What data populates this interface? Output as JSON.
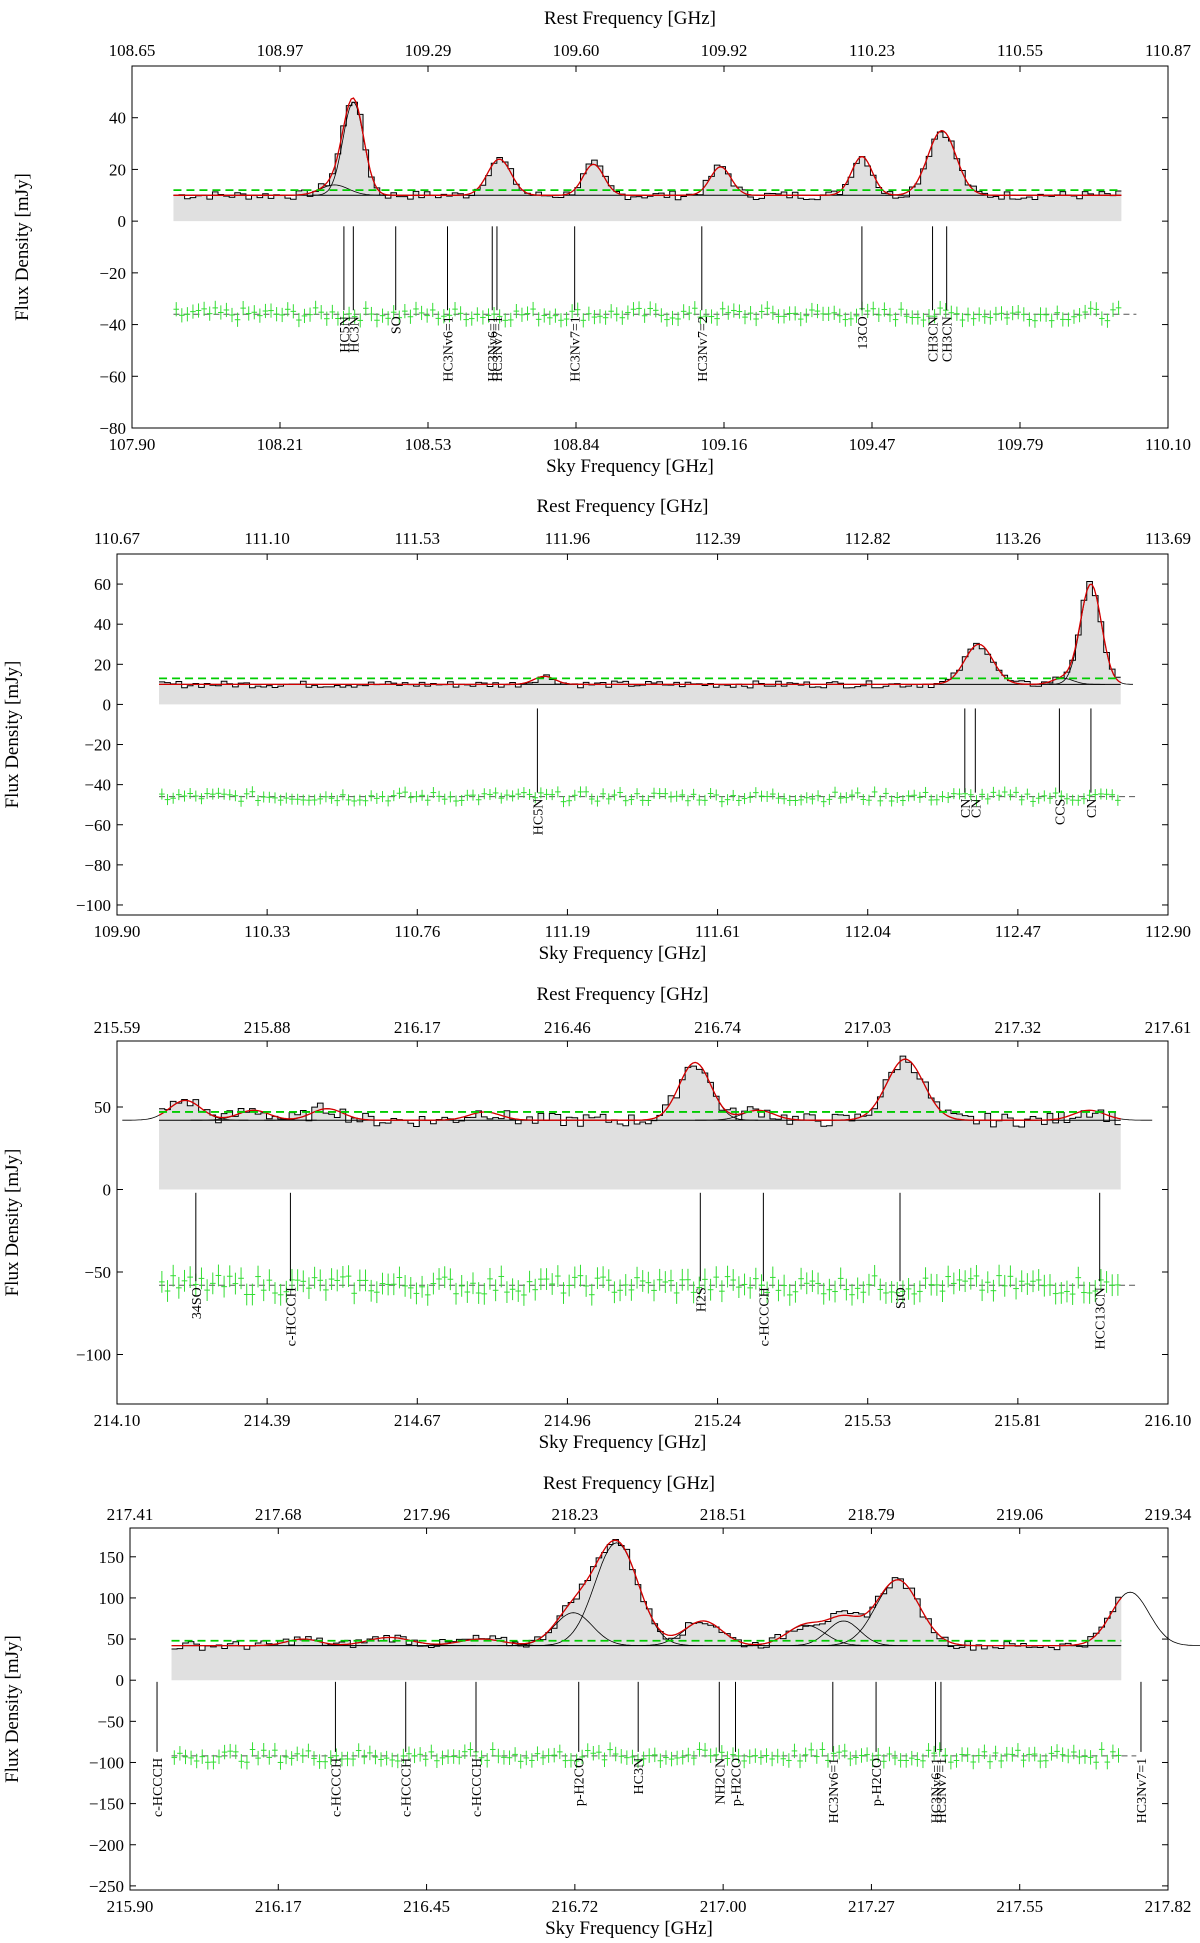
{
  "colors": {
    "spectrum_fill": "#e0e0e0",
    "spectrum_line": "#000000",
    "fit_total": "#d40000",
    "fit_component": "#000000",
    "noise_level": "#00cc00",
    "residual": "#33dd33",
    "axis": "#000000"
  },
  "chart_data": [
    {
      "type": "line",
      "title": "",
      "top_xlabel": "Rest Frequency [GHz]",
      "xlabel": "Sky Frequency [GHz]",
      "ylabel": "Flux Density [mJy]",
      "top_ticks": [
        "108.65",
        "108.97",
        "109.29",
        "109.60",
        "109.92",
        "110.23",
        "110.55",
        "110.87"
      ],
      "bottom_ticks": [
        "107.90",
        "108.21",
        "108.53",
        "108.84",
        "109.16",
        "109.47",
        "109.79",
        "110.10"
      ],
      "xlim": [
        107.9,
        110.1
      ],
      "ylim": [
        -80,
        60
      ],
      "yticks": [
        -80,
        -60,
        -40,
        -20,
        0,
        20,
        40
      ],
      "continuum": 10,
      "noise_level": 12,
      "residual_offset": -36,
      "residual_noise": 2.5,
      "peaks": [
        {
          "x": 108.37,
          "amp": 36,
          "sigma": 0.022
        },
        {
          "x": 108.33,
          "amp": 4,
          "sigma": 0.03
        },
        {
          "x": 108.68,
          "amp": 14,
          "sigma": 0.025
        },
        {
          "x": 108.88,
          "amp": 12,
          "sigma": 0.022
        },
        {
          "x": 109.15,
          "amp": 11,
          "sigma": 0.022
        },
        {
          "x": 109.45,
          "amp": 15,
          "sigma": 0.022
        },
        {
          "x": 109.62,
          "amp": 25,
          "sigma": 0.03
        }
      ],
      "lines": [
        {
          "label": "HC5N",
          "x": 108.35
        },
        {
          "label": "HC3N",
          "x": 108.37
        },
        {
          "label": "SO",
          "x": 108.46
        },
        {
          "label": "HC3Nv6=1",
          "x": 108.57
        },
        {
          "label": "HC3Nv6=1",
          "x": 108.665
        },
        {
          "label": "HC3Nv7=1",
          "x": 108.675
        },
        {
          "label": "HC3Nv7=1",
          "x": 108.84
        },
        {
          "label": "HC3Nv7=2",
          "x": 109.11
        },
        {
          "label": "13CO",
          "x": 109.45
        },
        {
          "label": "CH3CN",
          "x": 109.6
        },
        {
          "label": "CH3CN",
          "x": 109.63
        }
      ]
    },
    {
      "type": "line",
      "title": "",
      "top_xlabel": "Rest Frequency [GHz]",
      "xlabel": "Sky Frequency [GHz]",
      "ylabel": "Flux Density [mJy]",
      "top_ticks": [
        "110.67",
        "111.10",
        "111.53",
        "111.96",
        "112.39",
        "112.82",
        "113.26",
        "113.69"
      ],
      "bottom_ticks": [
        "109.90",
        "110.33",
        "110.76",
        "111.19",
        "111.61",
        "112.04",
        "112.47",
        "112.90"
      ],
      "xlim": [
        109.9,
        112.9
      ],
      "ylim": [
        -105,
        75
      ],
      "yticks": [
        -100,
        -80,
        -60,
        -40,
        -20,
        0,
        20,
        40,
        60
      ],
      "continuum": 10,
      "noise_level": 13,
      "residual_offset": -46,
      "residual_noise": 2.5,
      "peaks": [
        {
          "x": 111.12,
          "amp": 4,
          "sigma": 0.03
        },
        {
          "x": 112.36,
          "amp": 20,
          "sigma": 0.04
        },
        {
          "x": 112.68,
          "amp": 50,
          "sigma": 0.03
        },
        {
          "x": 112.6,
          "amp": 3,
          "sigma": 0.03
        }
      ],
      "lines": [
        {
          "label": "HC5N",
          "x": 111.1
        },
        {
          "label": "CN",
          "x": 112.32
        },
        {
          "label": "CN",
          "x": 112.35
        },
        {
          "label": "CCS",
          "x": 112.59
        },
        {
          "label": "CN",
          "x": 112.68
        }
      ]
    },
    {
      "type": "line",
      "title": "",
      "top_xlabel": "Rest Frequency [GHz]",
      "xlabel": "Sky Frequency [GHz]",
      "ylabel": "Flux Density [mJy]",
      "top_ticks": [
        "215.59",
        "215.88",
        "216.17",
        "216.46",
        "216.74",
        "217.03",
        "217.32",
        "217.61"
      ],
      "bottom_ticks": [
        "214.10",
        "214.39",
        "214.67",
        "214.96",
        "215.24",
        "215.53",
        "215.81",
        "216.10"
      ],
      "xlim": [
        214.1,
        216.1
      ],
      "ylim": [
        -130,
        90
      ],
      "yticks": [
        -100,
        -50,
        0,
        50
      ],
      "continuum": 42,
      "noise_level": 47,
      "residual_offset": -58,
      "residual_noise": 6,
      "peaks": [
        {
          "x": 214.23,
          "amp": 12,
          "sigma": 0.03
        },
        {
          "x": 214.36,
          "amp": 6,
          "sigma": 0.03
        },
        {
          "x": 214.5,
          "amp": 7,
          "sigma": 0.03
        },
        {
          "x": 214.8,
          "amp": 5,
          "sigma": 0.03
        },
        {
          "x": 215.2,
          "amp": 35,
          "sigma": 0.03
        },
        {
          "x": 215.32,
          "amp": 6,
          "sigma": 0.03
        },
        {
          "x": 215.6,
          "amp": 37,
          "sigma": 0.035
        },
        {
          "x": 215.95,
          "amp": 6,
          "sigma": 0.03
        }
      ],
      "lines": [
        {
          "label": "34SO",
          "x": 214.25
        },
        {
          "label": "c-HCCCH",
          "x": 214.43
        },
        {
          "label": "H2S",
          "x": 215.21
        },
        {
          "label": "c-HCCCH",
          "x": 215.33
        },
        {
          "label": "SiO",
          "x": 215.59
        },
        {
          "label": "HCC13CN",
          "x": 215.97
        }
      ]
    },
    {
      "type": "line",
      "title": "",
      "top_xlabel": "Rest Frequency [GHz]",
      "xlabel": "Sky Frequency [GHz]",
      "ylabel": "Flux Density [mJy]",
      "top_ticks": [
        "217.41",
        "217.68",
        "217.96",
        "218.23",
        "218.51",
        "218.79",
        "219.06",
        "219.34"
      ],
      "bottom_ticks": [
        "215.90",
        "216.17",
        "216.45",
        "216.72",
        "217.00",
        "217.27",
        "217.55",
        "217.82"
      ],
      "xlim": [
        215.9,
        217.82
      ],
      "ylim": [
        -255,
        185
      ],
      "yticks": [
        -250,
        -200,
        -150,
        -100,
        -50,
        0,
        50,
        100,
        150
      ],
      "continuum": 42,
      "noise_level": 48,
      "residual_offset": -92,
      "residual_noise": 8,
      "peaks": [
        {
          "x": 216.22,
          "amp": 8,
          "sigma": 0.03
        },
        {
          "x": 216.38,
          "amp": 10,
          "sigma": 0.04
        },
        {
          "x": 216.55,
          "amp": 8,
          "sigma": 0.04
        },
        {
          "x": 216.72,
          "amp": 40,
          "sigma": 0.035
        },
        {
          "x": 216.8,
          "amp": 125,
          "sigma": 0.04
        },
        {
          "x": 216.96,
          "amp": 30,
          "sigma": 0.035
        },
        {
          "x": 217.15,
          "amp": 25,
          "sigma": 0.035
        },
        {
          "x": 217.22,
          "amp": 30,
          "sigma": 0.03
        },
        {
          "x": 217.32,
          "amp": 80,
          "sigma": 0.04
        },
        {
          "x": 217.75,
          "amp": 65,
          "sigma": 0.035
        }
      ],
      "lines": [
        {
          "label": "c-HCCCH",
          "x": 215.95
        },
        {
          "label": "c-HCCCH",
          "x": 216.28
        },
        {
          "label": "c-HCCCH",
          "x": 216.41
        },
        {
          "label": "c-HCCCH",
          "x": 216.54
        },
        {
          "label": "p-H2CO",
          "x": 216.73
        },
        {
          "label": "HC3N",
          "x": 216.84
        },
        {
          "label": "NH2CN",
          "x": 216.99
        },
        {
          "label": "p-H2CO",
          "x": 217.02
        },
        {
          "label": "HC3Nv6=1",
          "x": 217.2
        },
        {
          "label": "p-H2CO",
          "x": 217.28
        },
        {
          "label": "HC3Nv6=1",
          "x": 217.39
        },
        {
          "label": "HC3Nv7=1",
          "x": 217.4
        },
        {
          "label": "HC3Nv7=1",
          "x": 217.77
        }
      ]
    }
  ]
}
